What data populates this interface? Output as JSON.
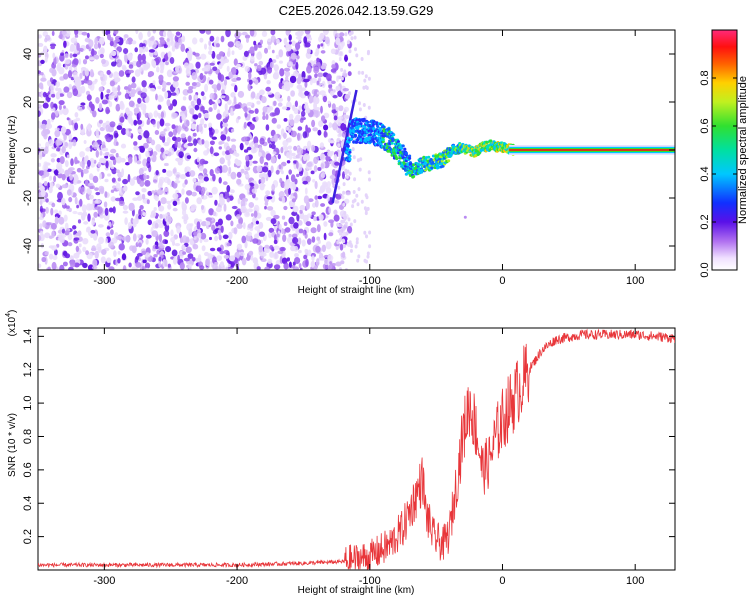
{
  "title": "C2E5.2026.042.13.59.G29",
  "chart_data": [
    {
      "type": "heatmap",
      "name": "spectrogram",
      "xlabel": "Height of straight line (km)",
      "ylabel": "Frequency (Hz)",
      "xlim": [
        -350,
        130
      ],
      "ylim": [
        -50,
        50
      ],
      "xticks": [
        -300,
        -200,
        -100,
        0,
        100
      ],
      "yticks": [
        -40,
        -20,
        0,
        20,
        40
      ],
      "colorbar": {
        "label": "Normalized spectral amplitude",
        "range": [
          0,
          1
        ],
        "ticks": [
          0.0,
          0.2,
          0.4,
          0.6,
          0.8
        ]
      },
      "features": {
        "noise_region_x": [
          -350,
          -115
        ],
        "transition_line": {
          "x_start": -128,
          "y_start": -22,
          "x_end": -110,
          "y_end": 25
        },
        "ridge": [
          {
            "x": -115,
            "y": 8
          },
          {
            "x": -105,
            "y": 8
          },
          {
            "x": -95,
            "y": 7
          },
          {
            "x": -85,
            "y": 4
          },
          {
            "x": -75,
            "y": -3
          },
          {
            "x": -68,
            "y": -9
          },
          {
            "x": -60,
            "y": -6
          },
          {
            "x": -52,
            "y": -5
          },
          {
            "x": -45,
            "y": -4
          },
          {
            "x": -38,
            "y": 0
          },
          {
            "x": -30,
            "y": 1
          },
          {
            "x": -22,
            "y": -1
          },
          {
            "x": -15,
            "y": 1
          },
          {
            "x": -8,
            "y": 2
          },
          {
            "x": 0,
            "y": 1
          },
          {
            "x": 10,
            "y": 0
          },
          {
            "x": 130,
            "y": 0
          }
        ],
        "steady_line_x": [
          5,
          130
        ],
        "steady_line_freq": 0
      }
    },
    {
      "type": "line",
      "name": "snr",
      "xlabel": "Height of straight line (km)",
      "ylabel": "SNR (10 * v/v)",
      "yscale_label": "(x10",
      "yscale_exponent": "4",
      "xlim": [
        -350,
        130
      ],
      "ylim": [
        0,
        1.45
      ],
      "xticks": [
        -300,
        -200,
        -100,
        0,
        100
      ],
      "yticks": [
        0.2,
        0.4,
        0.6,
        0.8,
        1.0,
        1.2,
        1.4
      ],
      "color": "#e8363a",
      "keypoints": [
        {
          "x": -350,
          "y": 0.03
        },
        {
          "x": -200,
          "y": 0.03
        },
        {
          "x": -150,
          "y": 0.04
        },
        {
          "x": -120,
          "y": 0.05
        },
        {
          "x": -100,
          "y": 0.08
        },
        {
          "x": -85,
          "y": 0.15
        },
        {
          "x": -75,
          "y": 0.25
        },
        {
          "x": -65,
          "y": 0.45
        },
        {
          "x": -60,
          "y": 0.55
        },
        {
          "x": -58,
          "y": 0.35
        },
        {
          "x": -52,
          "y": 0.2
        },
        {
          "x": -45,
          "y": 0.15
        },
        {
          "x": -40,
          "y": 0.22
        },
        {
          "x": -35,
          "y": 0.5
        },
        {
          "x": -30,
          "y": 0.8
        },
        {
          "x": -25,
          "y": 1.0
        },
        {
          "x": -20,
          "y": 0.85
        },
        {
          "x": -15,
          "y": 0.6
        },
        {
          "x": -10,
          "y": 0.65
        },
        {
          "x": -5,
          "y": 0.8
        },
        {
          "x": 0,
          "y": 0.9
        },
        {
          "x": 10,
          "y": 1.05
        },
        {
          "x": 20,
          "y": 1.2
        },
        {
          "x": 30,
          "y": 1.32
        },
        {
          "x": 40,
          "y": 1.38
        },
        {
          "x": 60,
          "y": 1.41
        },
        {
          "x": 100,
          "y": 1.41
        },
        {
          "x": 130,
          "y": 1.39
        }
      ]
    }
  ]
}
